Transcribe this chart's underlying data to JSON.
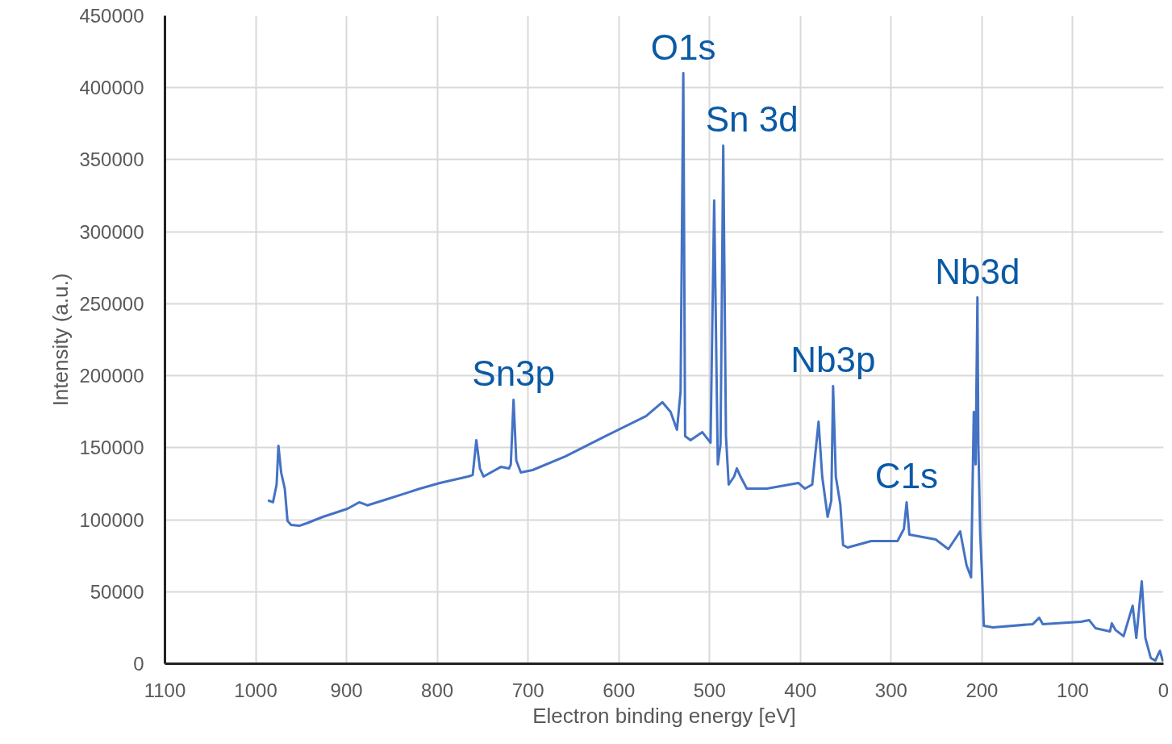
{
  "chart_data": {
    "type": "line",
    "xlabel": "Electron binding energy [eV]",
    "ylabel": "Intensity (a.u.)",
    "xlim": [
      1100,
      0
    ],
    "xticks": [
      1100,
      1000,
      900,
      800,
      700,
      600,
      500,
      400,
      300,
      200,
      100,
      0
    ],
    "ylim": [
      0,
      450000
    ],
    "yticks": [
      0,
      50000,
      100000,
      150000,
      200000,
      250000,
      300000,
      350000,
      400000,
      450000
    ],
    "grid": true,
    "marker": "none",
    "line_style": "solid",
    "series": [
      {
        "color": "#4472c4",
        "x": [
          985.5,
          981,
          977,
          975,
          972,
          968,
          965,
          961,
          952,
          944,
          926,
          899,
          886,
          877,
          855,
          819,
          797,
          766,
          761,
          757,
          753,
          749,
          730,
          721,
          719,
          716,
          713,
          708,
          695,
          659,
          615,
          570,
          552,
          543,
          536,
          532,
          529,
          527,
          521,
          508,
          499,
          495,
          491,
          488,
          485,
          482,
          479,
          473,
          470,
          466,
          459,
          437,
          402,
          395,
          387,
          380,
          376,
          370,
          366,
          364,
          361,
          356,
          353,
          348,
          322,
          293,
          286,
          283,
          280,
          251,
          237,
          224,
          217,
          212,
          209,
          207,
          205,
          204,
          202,
          200,
          198,
          188,
          144,
          137,
          133,
          91,
          82,
          75,
          59,
          57,
          53,
          44,
          34,
          30,
          24,
          20,
          14,
          9,
          4,
          1
        ],
        "values": [
          113200,
          112100,
          124400,
          151300,
          132800,
          121600,
          99200,
          96400,
          95800,
          97500,
          102000,
          107600,
          112100,
          110000,
          114300,
          121600,
          125500,
          130000,
          131100,
          155200,
          135600,
          130000,
          136700,
          135600,
          138400,
          183300,
          141200,
          132800,
          134500,
          144000,
          158000,
          172000,
          181600,
          174800,
          162500,
          188900,
          410200,
          158000,
          155200,
          160800,
          153500,
          321700,
          138400,
          152400,
          359800,
          158000,
          124400,
          130000,
          135600,
          130000,
          121600,
          121600,
          125500,
          121600,
          124400,
          168100,
          130000,
          102000,
          113200,
          192800,
          130000,
          110400,
          82400,
          80700,
          85200,
          85200,
          93600,
          112100,
          89700,
          86300,
          79600,
          91900,
          68400,
          60000,
          174800,
          138400,
          254400,
          152400,
          90800,
          62800,
          26300,
          25200,
          27500,
          31900,
          27500,
          29100,
          30300,
          24700,
          22400,
          28000,
          23500,
          19100,
          40300,
          17900,
          57200,
          17900,
          3900,
          2200,
          9000,
          2200
        ]
      }
    ],
    "annotations": [
      {
        "text": "O1s",
        "x": 529,
        "y": 410200
      },
      {
        "text": "Sn 3d",
        "x": 485,
        "y": 359800
      },
      {
        "text": "Sn3p",
        "x": 716,
        "y": 183300
      },
      {
        "text": "Nb3p",
        "x": 364,
        "y": 192800
      },
      {
        "text": "C1s",
        "x": 283,
        "y": 112100
      },
      {
        "text": "Nb3d",
        "x": 205,
        "y": 254400
      }
    ]
  }
}
